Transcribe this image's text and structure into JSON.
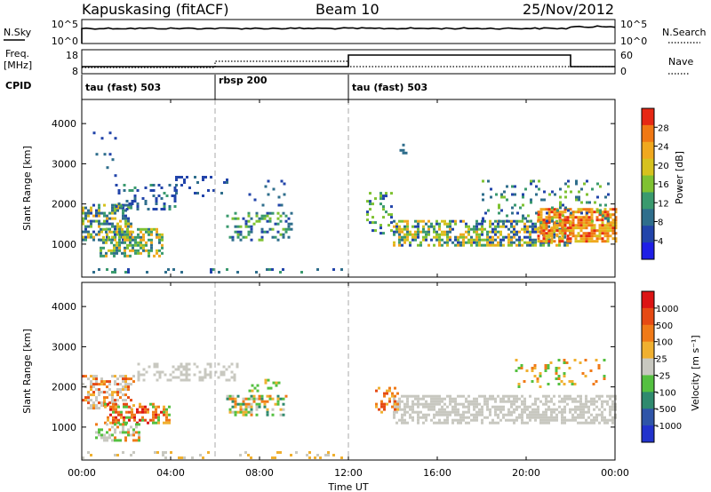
{
  "header": {
    "station": "Kapuskasing (fitACF)",
    "beam": "Beam 10",
    "date": "25/Nov/2012"
  },
  "sky_panel": {
    "left_label": "N.Sky",
    "right_label": "N.Search",
    "left_ticks": [
      "10^5",
      "10^0"
    ],
    "right_ticks": [
      "10^5",
      "10^0"
    ]
  },
  "freq_panel": {
    "left_label_1": "Freq.",
    "left_label_2": "[MHz]",
    "right_label": "Nave",
    "left_ticks": [
      "18",
      "8"
    ],
    "right_ticks": [
      "60",
      "0"
    ],
    "cpid_label": "CPID"
  },
  "cpid_segments": [
    {
      "label": "tau (fast) 503",
      "start_h": 0
    },
    {
      "label": "rbsp 200",
      "start_h": 6
    },
    {
      "label": "tau (fast) 503",
      "start_h": 12
    }
  ],
  "chart_data": [
    {
      "type": "heatmap",
      "panel": "power",
      "ylabel": "Slant Range [km]",
      "yticks": [
        "4000",
        "3000",
        "2000",
        "1000"
      ],
      "ylim": [
        180,
        4600
      ],
      "colorbar_label": "Power [dB]",
      "colorbar_ticks": [
        "28",
        "24",
        "20",
        "16",
        "12",
        "8",
        "4"
      ],
      "colors": [
        "#1e1ee6",
        "#2244aa",
        "#2f6e8c",
        "#3a9a6e",
        "#7fc232",
        "#d6c21e",
        "#f0a81e",
        "#f07814",
        "#e62814"
      ]
    },
    {
      "type": "heatmap",
      "panel": "velocity",
      "ylabel": "Slant Range [km]",
      "yticks": [
        "4000",
        "3000",
        "2000",
        "1000"
      ],
      "ylim": [
        180,
        4600
      ],
      "colorbar_label": "Velocity [m s⁻¹]",
      "colorbar_ticks": [
        "1000",
        "500",
        "100",
        "25",
        "-25",
        "-100",
        "-500",
        "-1000"
      ],
      "colors": [
        "#2233cc",
        "#2f55a8",
        "#2f8a6e",
        "#54c040",
        "#c8c8c0",
        "#f0b030",
        "#f07a18",
        "#e64a14",
        "#dc1414"
      ]
    }
  ],
  "x_axis": {
    "label": "Time UT",
    "xlim": [
      0,
      24
    ],
    "ticks": [
      "00:00",
      "04:00",
      "08:00",
      "12:00",
      "16:00",
      "20:00",
      "00:00"
    ]
  }
}
